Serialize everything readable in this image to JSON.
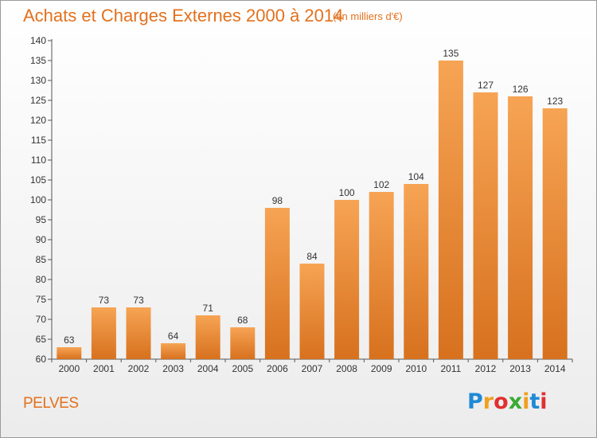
{
  "title": "Achats et Charges Externes 2000 à 2014",
  "subtitle": "(en milliers d'€)",
  "commune": "PELVES",
  "logo": {
    "text": "Proxiti",
    "letters": [
      "P",
      "r",
      "o",
      "x",
      "i",
      "t",
      "i"
    ],
    "colors": [
      "#1f8ad6",
      "#f0a020",
      "#e03030",
      "#3aaa35",
      "#f0a020",
      "#1f8ad6",
      "#e03030"
    ]
  },
  "colors": {
    "accent": "#e2711d",
    "bar_top": "#f6a454",
    "bar_bottom": "#d7711e"
  },
  "chart_data": {
    "type": "bar",
    "title": "Achats et Charges Externes 2000 à 2014",
    "subtitle": "(en milliers d'€)",
    "categories": [
      "2000",
      "2001",
      "2002",
      "2003",
      "2004",
      "2005",
      "2006",
      "2007",
      "2008",
      "2009",
      "2010",
      "2011",
      "2012",
      "2013",
      "2014"
    ],
    "values": [
      63,
      73,
      73,
      64,
      71,
      68,
      98,
      84,
      100,
      102,
      104,
      135,
      127,
      126,
      123
    ],
    "ylim": [
      60,
      140
    ],
    "yticks": [
      60,
      65,
      70,
      75,
      80,
      85,
      90,
      95,
      100,
      105,
      110,
      115,
      120,
      125,
      130,
      135,
      140
    ],
    "grid": false,
    "data_labels": true
  }
}
